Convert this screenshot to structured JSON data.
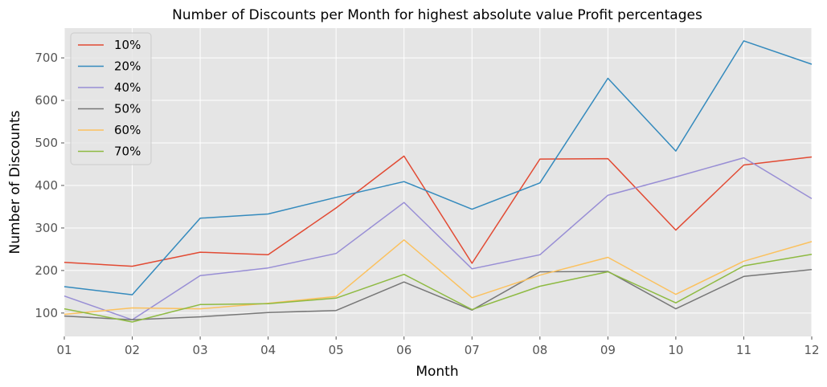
{
  "chart_data": {
    "type": "line",
    "title": "Number of Discounts per Month for highest absolute value Profit percentages",
    "xlabel": "Month",
    "ylabel": "Number of Discounts",
    "categories": [
      "01",
      "02",
      "03",
      "04",
      "05",
      "06",
      "07",
      "08",
      "09",
      "10",
      "11",
      "12"
    ],
    "ylim": [
      45,
      770
    ],
    "yticks": [
      100,
      200,
      300,
      400,
      500,
      600,
      700
    ],
    "grid": true,
    "legend_position": "top-left",
    "background_color": "#e5e5e5",
    "series": [
      {
        "name": "10%",
        "color": "#e24a33",
        "values": [
          219,
          210,
          243,
          237,
          347,
          469,
          217,
          462,
          463,
          295,
          448,
          467
        ]
      },
      {
        "name": "20%",
        "color": "#348abd",
        "values": [
          162,
          143,
          323,
          333,
          372,
          409,
          344,
          406,
          652,
          481,
          740,
          685
        ]
      },
      {
        "name": "40%",
        "color": "#988ed5",
        "values": [
          140,
          84,
          188,
          206,
          240,
          360,
          204,
          237,
          377,
          420,
          465,
          369
        ]
      },
      {
        "name": "50%",
        "color": "#777777",
        "values": [
          93,
          84,
          91,
          101,
          106,
          173,
          107,
          197,
          198,
          110,
          186,
          202
        ]
      },
      {
        "name": "60%",
        "color": "#fbc15e",
        "values": [
          97,
          112,
          110,
          123,
          139,
          272,
          136,
          189,
          231,
          144,
          222,
          268
        ]
      },
      {
        "name": "70%",
        "color": "#8eba42",
        "values": [
          110,
          79,
          120,
          122,
          135,
          191,
          108,
          163,
          197,
          124,
          211,
          238
        ]
      }
    ]
  }
}
